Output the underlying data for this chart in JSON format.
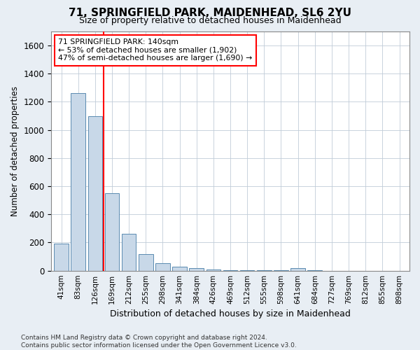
{
  "title": "71, SPRINGFIELD PARK, MAIDENHEAD, SL6 2YU",
  "subtitle": "Size of property relative to detached houses in Maidenhead",
  "xlabel": "Distribution of detached houses by size in Maidenhead",
  "ylabel": "Number of detached properties",
  "categories": [
    "41sqm",
    "83sqm",
    "126sqm",
    "169sqm",
    "212sqm",
    "255sqm",
    "298sqm",
    "341sqm",
    "384sqm",
    "426sqm",
    "469sqm",
    "512sqm",
    "555sqm",
    "598sqm",
    "641sqm",
    "684sqm",
    "727sqm",
    "769sqm",
    "812sqm",
    "855sqm",
    "898sqm"
  ],
  "values": [
    190,
    1260,
    1100,
    550,
    260,
    120,
    55,
    30,
    20,
    10,
    5,
    2,
    2,
    1,
    20,
    1,
    0,
    0,
    0,
    0,
    0
  ],
  "bar_color": "#c8d8e8",
  "bar_edge_color": "#5a8ab0",
  "ylim": [
    0,
    1700
  ],
  "yticks": [
    0,
    200,
    400,
    600,
    800,
    1000,
    1200,
    1400,
    1600
  ],
  "red_line_x": 2.5,
  "annotation_line1": "71 SPRINGFIELD PARK: 140sqm",
  "annotation_line2": "← 53% of detached houses are smaller (1,902)",
  "annotation_line3": "47% of semi-detached houses are larger (1,690) →",
  "footer_text": "Contains HM Land Registry data © Crown copyright and database right 2024.\nContains public sector information licensed under the Open Government Licence v3.0.",
  "background_color": "#e8eef4",
  "plot_background": "#ffffff",
  "grid_color": "#c0ccd8"
}
